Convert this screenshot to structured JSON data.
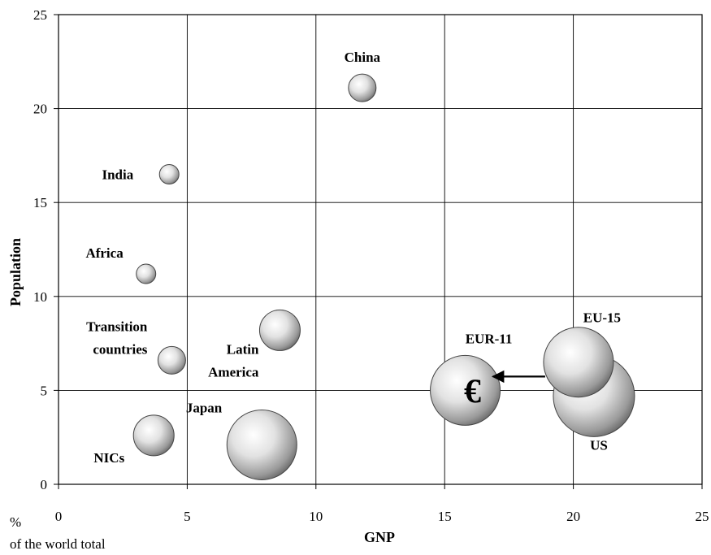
{
  "chart_data": {
    "type": "scatter",
    "xlabel": "GNP",
    "ylabel": "Population",
    "xlim": [
      0,
      25
    ],
    "ylim": [
      0,
      25
    ],
    "x_ticks": [
      "0",
      "5",
      "10",
      "15",
      "20",
      "25"
    ],
    "y_ticks": [
      "0",
      "5",
      "10",
      "15",
      "20",
      "25"
    ],
    "grid": true,
    "corner_note": [
      "%",
      "of the world total"
    ],
    "points": [
      {
        "label": [
          "China"
        ],
        "x": 11.8,
        "y": 21.1,
        "relative_size": "small"
      },
      {
        "label": [
          "India"
        ],
        "x": 4.3,
        "y": 16.5,
        "relative_size": "very small"
      },
      {
        "label": [
          "Africa"
        ],
        "x": 3.4,
        "y": 11.2,
        "relative_size": "very small"
      },
      {
        "label": [
          "Transition",
          "countries"
        ],
        "x": 4.4,
        "y": 6.6,
        "relative_size": "small"
      },
      {
        "label": [
          "Latin",
          "America"
        ],
        "x": 8.6,
        "y": 8.2,
        "relative_size": "medium"
      },
      {
        "label": [
          "NICs"
        ],
        "x": 3.7,
        "y": 2.6,
        "relative_size": "medium"
      },
      {
        "label": [
          "Japan"
        ],
        "x": 7.9,
        "y": 2.1,
        "relative_size": "large"
      },
      {
        "label": [
          "EUR-11"
        ],
        "x": 15.8,
        "y": 5.0,
        "relative_size": "large",
        "symbol": "€"
      },
      {
        "label": [
          "EU-15"
        ],
        "x": 20.2,
        "y": 6.5,
        "relative_size": "large"
      },
      {
        "label": [
          "US"
        ],
        "x": 20.8,
        "y": 4.7,
        "relative_size": "very large"
      }
    ],
    "arrow": {
      "from": "EU-15",
      "to": "EUR-11"
    }
  }
}
